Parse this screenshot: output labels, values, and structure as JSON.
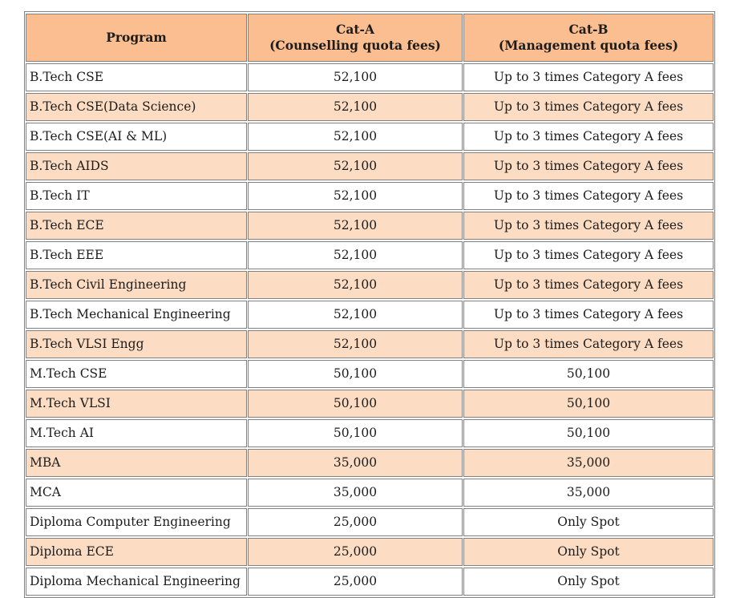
{
  "colors": {
    "header_bg": "#fbbe90",
    "band_bg": "#fcdcc3",
    "border": "#808080",
    "text": "#1c1c1c",
    "page_bg": "#ffffff"
  },
  "chart_data": {
    "type": "table",
    "title": "",
    "legend": "none",
    "grid": "all-cell-borders",
    "columns": [
      {
        "id": "program",
        "line1": "Program",
        "line2": ""
      },
      {
        "id": "cat_a",
        "line1": "Cat-A",
        "line2": "(Counselling quota fees)"
      },
      {
        "id": "cat_b",
        "line1": "Cat-B",
        "line2": "(Management quota fees)"
      }
    ],
    "rows": [
      {
        "program": "B.Tech CSE",
        "cat_a": "52,100",
        "cat_b": "Up to 3 times Category A fees",
        "shaded": false
      },
      {
        "program": "B.Tech CSE(Data Science)",
        "cat_a": "52,100",
        "cat_b": "Up to 3 times Category A fees",
        "shaded": true
      },
      {
        "program": "B.Tech CSE(AI & ML)",
        "cat_a": "52,100",
        "cat_b": "Up to 3 times Category A fees",
        "shaded": false
      },
      {
        "program": "B.Tech AIDS",
        "cat_a": "52,100",
        "cat_b": "Up to 3 times Category A fees",
        "shaded": true
      },
      {
        "program": "B.Tech IT",
        "cat_a": "52,100",
        "cat_b": "Up to 3 times Category A fees",
        "shaded": false
      },
      {
        "program": "B.Tech ECE",
        "cat_a": "52,100",
        "cat_b": "Up to 3 times Category A fees",
        "shaded": true
      },
      {
        "program": "B.Tech EEE",
        "cat_a": "52,100",
        "cat_b": "Up to 3 times Category A fees",
        "shaded": false
      },
      {
        "program": "B.Tech Civil Engineering",
        "cat_a": "52,100",
        "cat_b": "Up to 3 times Category A fees",
        "shaded": true
      },
      {
        "program": "B.Tech Mechanical Engineering",
        "cat_a": "52,100",
        "cat_b": "Up to 3 times Category A fees",
        "shaded": false
      },
      {
        "program": "B.Tech VLSI Engg",
        "cat_a": "52,100",
        "cat_b": "Up to 3 times Category A fees",
        "shaded": true
      },
      {
        "program": "M.Tech CSE",
        "cat_a": "50,100",
        "cat_b": "50,100",
        "shaded": false
      },
      {
        "program": "M.Tech VLSI",
        "cat_a": "50,100",
        "cat_b": "50,100",
        "shaded": true
      },
      {
        "program": "M.Tech AI",
        "cat_a": "50,100",
        "cat_b": "50,100",
        "shaded": false
      },
      {
        "program": "MBA",
        "cat_a": "35,000",
        "cat_b": "35,000",
        "shaded": true
      },
      {
        "program": "MCA",
        "cat_a": "35,000",
        "cat_b": "35,000",
        "shaded": false
      },
      {
        "program": "Diploma Computer Engineering",
        "cat_a": "25,000",
        "cat_b": "Only Spot",
        "shaded": false
      },
      {
        "program": "Diploma ECE",
        "cat_a": "25,000",
        "cat_b": "Only Spot",
        "shaded": true
      },
      {
        "program": "Diploma Mechanical Engineering",
        "cat_a": "25,000",
        "cat_b": "Only Spot",
        "shaded": false
      }
    ]
  }
}
